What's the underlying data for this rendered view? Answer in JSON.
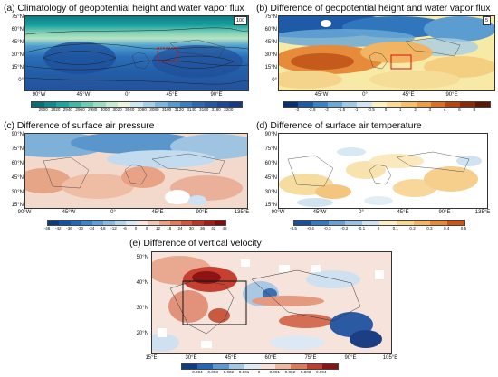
{
  "panels": {
    "a": {
      "title": "(a) Climatology of geopotential height and water vapor flux",
      "ref_vector": "100",
      "lat_labels": [
        "75°N",
        "60°N",
        "45°N",
        "30°N",
        "15°N",
        "0°"
      ],
      "lon_labels": [
        "90°W",
        "45°W",
        "0°",
        "45°E",
        "90°E"
      ],
      "colorbar_labels": [
        "2900",
        "2920",
        "2940",
        "2960",
        "2980",
        "3000",
        "3020",
        "3040",
        "3060",
        "3080",
        "3100",
        "3120",
        "3140",
        "3160",
        "3180",
        "3200"
      ]
    },
    "b": {
      "title": "(b) Difference of geopotential height and water vapor flux",
      "ref_vector": "5",
      "lat_labels": [
        "75°N",
        "60°N",
        "45°N",
        "30°N",
        "15°N",
        "0°"
      ],
      "lon_labels": [
        "45°W",
        "0°",
        "45°E",
        "90°E"
      ],
      "colorbar_labels": [
        "-3",
        "-2.5",
        "-2",
        "-1.5",
        "-1",
        "-0.5",
        "0",
        "1",
        "2",
        "3",
        "4",
        "6",
        "8"
      ]
    },
    "c": {
      "title": "(c) Difference of surface air pressure",
      "lat_labels": [
        "90°N",
        "75°N",
        "60°N",
        "45°N",
        "30°N",
        "15°N"
      ],
      "lon_labels": [
        "90°W",
        "45°W",
        "0°",
        "45°E",
        "90°E",
        "135°E"
      ],
      "colorbar_labels": [
        "-48",
        "-42",
        "-36",
        "-30",
        "-24",
        "-18",
        "-12",
        "-6",
        "0",
        "6",
        "12",
        "18",
        "24",
        "30",
        "36",
        "42",
        "48"
      ]
    },
    "d": {
      "title": "(d) Difference of surface air temperature",
      "lat_labels": [
        "90°N",
        "75°N",
        "60°N",
        "45°N",
        "30°N",
        "15°N"
      ],
      "lon_labels": [
        "90°W",
        "45°W",
        "0°",
        "45°E",
        "90°E",
        "135°E"
      ],
      "colorbar_labels": [
        "-0.5",
        "-0.4",
        "-0.3",
        "-0.2",
        "-0.1",
        "0",
        "0.1",
        "0.2",
        "0.3",
        "0.4",
        "0.5"
      ]
    },
    "e": {
      "title": "(e) Difference of vertical velocity",
      "lat_labels": [
        "50°N",
        "40°N",
        "30°N",
        "20°N"
      ],
      "lon_labels": [
        "15°E",
        "30°E",
        "45°E",
        "60°E",
        "75°E",
        "90°E",
        "105°E"
      ],
      "colorbar_labels": [
        "-0.004",
        "-0.003",
        "-0.002",
        "-0.001",
        "0",
        "0.001",
        "0.002",
        "0.003",
        "0.004"
      ]
    }
  },
  "colors": {
    "blue_dark": "#1f4e9c",
    "blue_light": "#a9cde6",
    "red_dark": "#a5141a",
    "red_light": "#f2b6a0",
    "yellow": "#f6e48c",
    "box_red": "#e01010",
    "box_black": "#111111"
  }
}
